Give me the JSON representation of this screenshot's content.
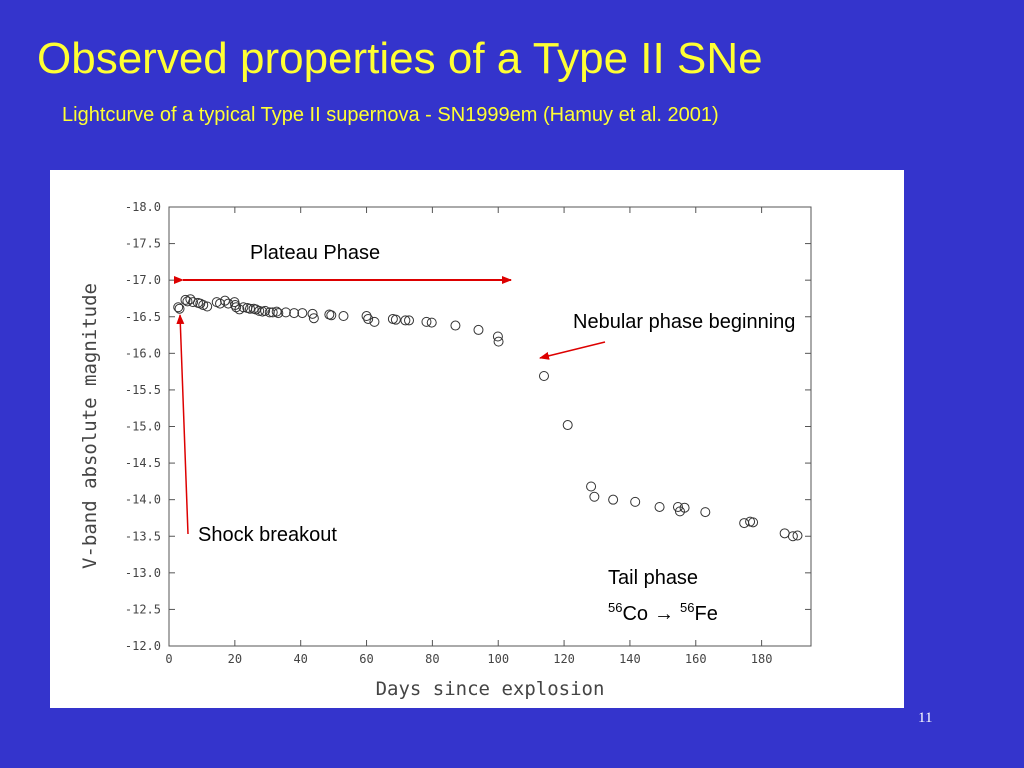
{
  "slide": {
    "title": "Observed properties of a Type II SNe",
    "subtitle": "Lightcurve of a typical Type II supernova - SN1999em (Hamuy et al. 2001)",
    "slide_number": "11"
  },
  "colors": {
    "background": "#3434cc",
    "title": "#ffff33",
    "arrow": "#dd0000"
  },
  "annotations": {
    "plateau": "Plateau Phase",
    "nebular": "Nebular phase beginning",
    "shock": "Shock breakout",
    "tail": "Tail phase",
    "co_mass": "56",
    "co_symbol": "Co",
    "arrow_symbol": "→",
    "fe_mass": "56",
    "fe_symbol": "Fe"
  },
  "chart_data": {
    "type": "scatter",
    "title": "",
    "xlabel": "Days since explosion",
    "ylabel": "V-band absolute magnitude",
    "xlim": [
      0,
      195
    ],
    "ylim": [
      -12.0,
      -18.0
    ],
    "y_inverted": false,
    "grid": false,
    "marker": "open-circle",
    "x_ticks": [
      0,
      20,
      40,
      60,
      80,
      100,
      120,
      140,
      160,
      180
    ],
    "x_tick_labels": [
      "0",
      "20",
      "40",
      "60",
      "80",
      "100",
      "120",
      "140",
      "160",
      "180"
    ],
    "y_ticks": [
      -18.0,
      -17.5,
      -17.0,
      -16.5,
      -16.0,
      -15.5,
      -15.0,
      -14.5,
      -14.0,
      -13.5,
      -13.0,
      -12.5,
      -12.0
    ],
    "y_tick_labels": [
      "-18.0",
      "-17.5",
      "-17.0",
      "-16.5",
      "-16.0",
      "-15.5",
      "-15.0",
      "-14.5",
      "-14.0",
      "-13.5",
      "-13.0",
      "-12.5",
      "-12.0"
    ],
    "series": [
      {
        "points": [
          [
            2.8,
            -16.63
          ],
          [
            3.2,
            -16.61
          ],
          [
            5.0,
            -16.73
          ],
          [
            5.6,
            -16.71
          ],
          [
            6.5,
            -16.74
          ],
          [
            7.3,
            -16.7
          ],
          [
            8.8,
            -16.69
          ],
          [
            9.5,
            -16.68
          ],
          [
            10.4,
            -16.66
          ],
          [
            11.6,
            -16.64
          ],
          [
            14.5,
            -16.7
          ],
          [
            15.5,
            -16.68
          ],
          [
            17.0,
            -16.72
          ],
          [
            18.0,
            -16.68
          ],
          [
            19.9,
            -16.7
          ],
          [
            20.1,
            -16.66
          ],
          [
            20.4,
            -16.63
          ],
          [
            21.4,
            -16.6
          ],
          [
            22.6,
            -16.63
          ],
          [
            23.8,
            -16.62
          ],
          [
            24.6,
            -16.61
          ],
          [
            25.7,
            -16.61
          ],
          [
            26.4,
            -16.6
          ],
          [
            27.4,
            -16.58
          ],
          [
            28.4,
            -16.57
          ],
          [
            29.2,
            -16.58
          ],
          [
            30.6,
            -16.56
          ],
          [
            31.5,
            -16.56
          ],
          [
            32.7,
            -16.57
          ],
          [
            33.2,
            -16.55
          ],
          [
            35.5,
            -16.56
          ],
          [
            38.0,
            -16.55
          ],
          [
            40.5,
            -16.55
          ],
          [
            43.6,
            -16.54
          ],
          [
            44.0,
            -16.48
          ],
          [
            48.7,
            -16.53
          ],
          [
            49.3,
            -16.52
          ],
          [
            53.0,
            -16.51
          ],
          [
            60.0,
            -16.51
          ],
          [
            60.5,
            -16.47
          ],
          [
            62.4,
            -16.43
          ],
          [
            68.0,
            -16.47
          ],
          [
            68.9,
            -16.46
          ],
          [
            71.8,
            -16.45
          ],
          [
            72.9,
            -16.45
          ],
          [
            78.2,
            -16.43
          ],
          [
            79.8,
            -16.42
          ],
          [
            87.0,
            -16.38
          ],
          [
            94.0,
            -16.32
          ],
          [
            99.9,
            -16.23
          ],
          [
            100.1,
            -16.16
          ],
          [
            113.9,
            -15.69
          ],
          [
            121.1,
            -15.02
          ],
          [
            128.2,
            -14.18
          ],
          [
            129.2,
            -14.04
          ],
          [
            134.9,
            -14.0
          ],
          [
            141.6,
            -13.97
          ],
          [
            149.0,
            -13.9
          ],
          [
            154.6,
            -13.9
          ],
          [
            155.2,
            -13.84
          ],
          [
            156.6,
            -13.89
          ],
          [
            162.9,
            -13.83
          ],
          [
            174.7,
            -13.68
          ],
          [
            176.5,
            -13.7
          ],
          [
            177.4,
            -13.69
          ],
          [
            187.0,
            -13.54
          ],
          [
            189.5,
            -13.5
          ],
          [
            190.9,
            -13.51
          ]
        ]
      }
    ]
  }
}
